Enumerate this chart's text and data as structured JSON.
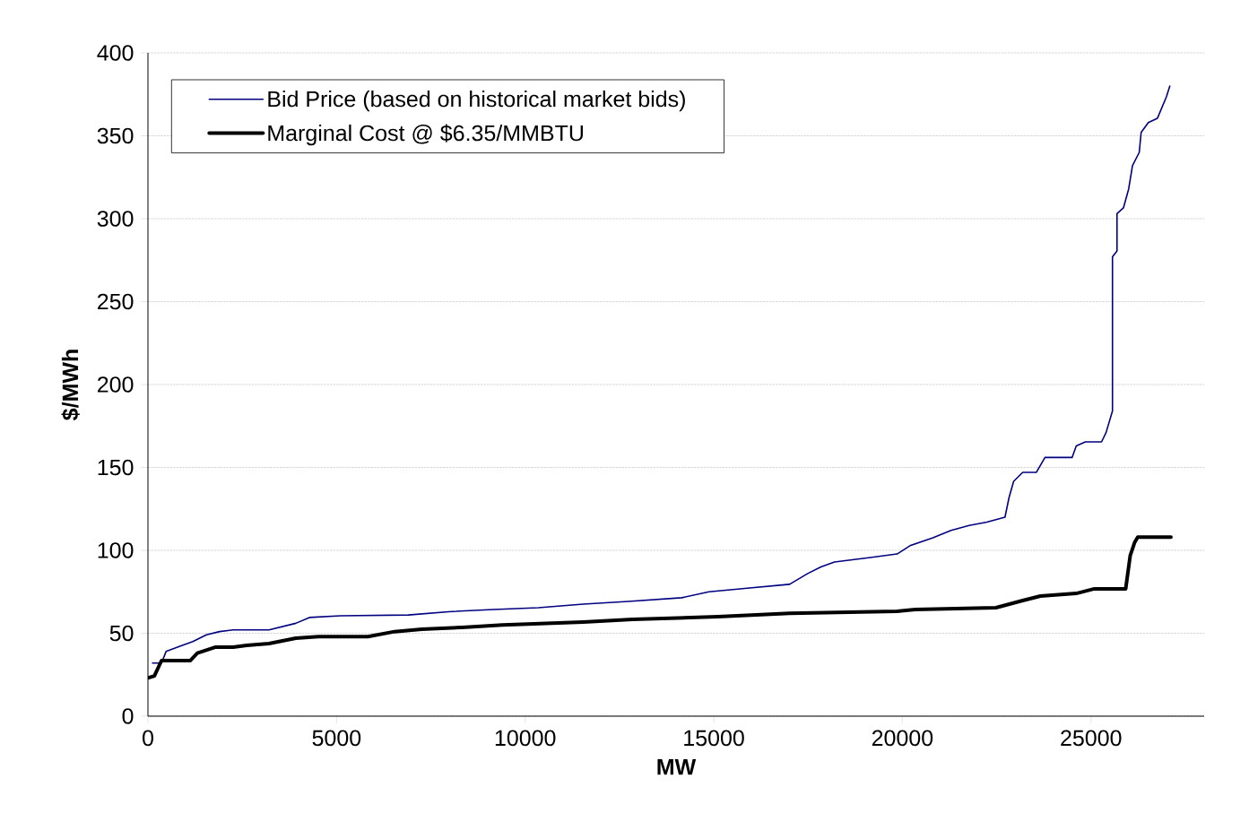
{
  "chart_data": {
    "type": "line",
    "xlabel": "MW",
    "ylabel": "$/MWh",
    "xlim": [
      0,
      28000
    ],
    "ylim": [
      0,
      400
    ],
    "xticks": [
      0,
      5000,
      10000,
      15000,
      20000,
      25000
    ],
    "yticks": [
      0,
      50,
      100,
      150,
      200,
      250,
      300,
      350,
      400
    ],
    "grid": "y",
    "legend": "top left",
    "marker": "none",
    "line_style": "solid",
    "series": [
      {
        "name": "Bid Price (based on historical market bids)",
        "color": "#000080",
        "x": [
          120,
          360,
          480,
          830,
          1190,
          1550,
          1900,
          2260,
          3210,
          3920,
          4280,
          5110,
          6900,
          7970,
          9160,
          10350,
          11540,
          12730,
          14150,
          14870,
          15820,
          17010,
          17490,
          17840,
          18200,
          19150,
          19860,
          20220,
          20810,
          21290,
          21770,
          22240,
          22720,
          22830,
          22950,
          23190,
          23550,
          23780,
          24500,
          24610,
          24850,
          25280,
          25400,
          25570,
          25570,
          25690,
          25690,
          25860,
          26000,
          26100,
          26280,
          26330,
          26520,
          26760,
          27000,
          27090
        ],
        "values": [
          32,
          32,
          39,
          42,
          45,
          49,
          51,
          52,
          52,
          56,
          59.5,
          60.5,
          61,
          63,
          64.3,
          65.4,
          67.6,
          69.2,
          71.4,
          75,
          77,
          79.5,
          86,
          90,
          93,
          95.7,
          97.8,
          103,
          107.6,
          112,
          115,
          117,
          120,
          132,
          141.6,
          147,
          147,
          156,
          156,
          163,
          165.4,
          165.4,
          171,
          184,
          277,
          280.5,
          303,
          306.5,
          318,
          332,
          340,
          352,
          358,
          360.5,
          373.5,
          380
        ]
      },
      {
        "name": "Marginal Cost @ $6.35/MMBTU",
        "color": "#000000",
        "x": [
          0,
          170,
          360,
          1120,
          1310,
          1780,
          2260,
          2620,
          3210,
          3920,
          4520,
          5830,
          6540,
          7260,
          8330,
          9400,
          11540,
          12850,
          15110,
          17010,
          19860,
          20340,
          22480,
          23190,
          23660,
          24610,
          25090,
          25920,
          26040,
          26160,
          26240,
          27120
        ],
        "values": [
          23,
          24.3,
          33.5,
          33.5,
          38,
          41.6,
          41.6,
          42.7,
          43.8,
          47,
          48,
          48,
          51,
          52.4,
          53.5,
          55,
          56.8,
          58.4,
          60,
          62,
          63.2,
          64.3,
          65.4,
          69.7,
          72.4,
          74,
          76.8,
          76.8,
          96.8,
          104.9,
          108,
          108
        ]
      }
    ]
  }
}
